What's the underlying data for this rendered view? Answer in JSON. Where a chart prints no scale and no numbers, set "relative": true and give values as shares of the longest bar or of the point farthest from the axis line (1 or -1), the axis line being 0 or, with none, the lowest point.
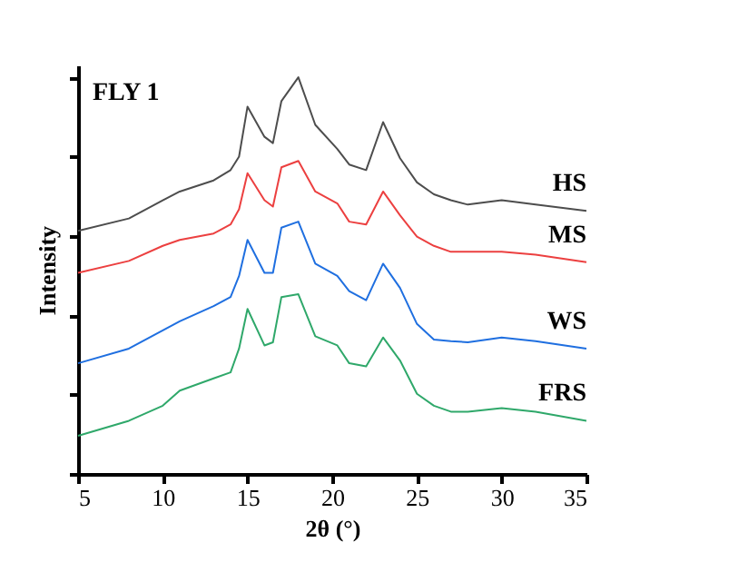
{
  "chart_data": {
    "type": "line",
    "relative": true,
    "xlabel": "2θ (°)",
    "ylabel": "Intensity",
    "annotations": [
      "FLY 1"
    ],
    "xlim": [
      5,
      35
    ],
    "xticks": [
      5,
      10,
      15,
      20,
      25,
      30,
      35
    ],
    "grid": false,
    "legend": false,
    "marker": "none",
    "line_style": "solid",
    "x": [
      5,
      8,
      10,
      11,
      13,
      14,
      14.5,
      15,
      16,
      16.5,
      17,
      18,
      19,
      20.3,
      21,
      22,
      23,
      24,
      25,
      26,
      27,
      28,
      30,
      32,
      35
    ],
    "series": [
      {
        "name": "HS",
        "color": "#4d4d4d",
        "values": [
          0.613,
          0.644,
          0.69,
          0.712,
          0.74,
          0.766,
          0.8,
          0.926,
          0.85,
          0.834,
          0.94,
          1,
          0.88,
          0.819,
          0.78,
          0.766,
          0.887,
          0.796,
          0.735,
          0.705,
          0.69,
          0.679,
          0.69,
          0.679,
          0.663
        ]
      },
      {
        "name": "MS",
        "color": "#ec4040",
        "values": [
          0.507,
          0.537,
          0.575,
          0.59,
          0.606,
          0.629,
          0.667,
          0.758,
          0.69,
          0.674,
          0.773,
          0.789,
          0.712,
          0.682,
          0.636,
          0.629,
          0.712,
          0.652,
          0.598,
          0.575,
          0.56,
          0.56,
          0.56,
          0.553,
          0.534
        ]
      },
      {
        "name": "WS",
        "color": "#1f6fe0",
        "values": [
          0.279,
          0.316,
          0.362,
          0.385,
          0.423,
          0.446,
          0.499,
          0.59,
          0.507,
          0.507,
          0.621,
          0.636,
          0.53,
          0.499,
          0.461,
          0.438,
          0.53,
          0.469,
          0.378,
          0.339,
          0.335,
          0.332,
          0.344,
          0.335,
          0.316
        ]
      },
      {
        "name": "FRS",
        "color": "#2fa86a",
        "values": [
          0.096,
          0.134,
          0.172,
          0.21,
          0.241,
          0.256,
          0.316,
          0.416,
          0.324,
          0.332,
          0.446,
          0.453,
          0.347,
          0.324,
          0.279,
          0.271,
          0.344,
          0.286,
          0.202,
          0.172,
          0.157,
          0.157,
          0.166,
          0.157,
          0.134
        ]
      }
    ]
  }
}
